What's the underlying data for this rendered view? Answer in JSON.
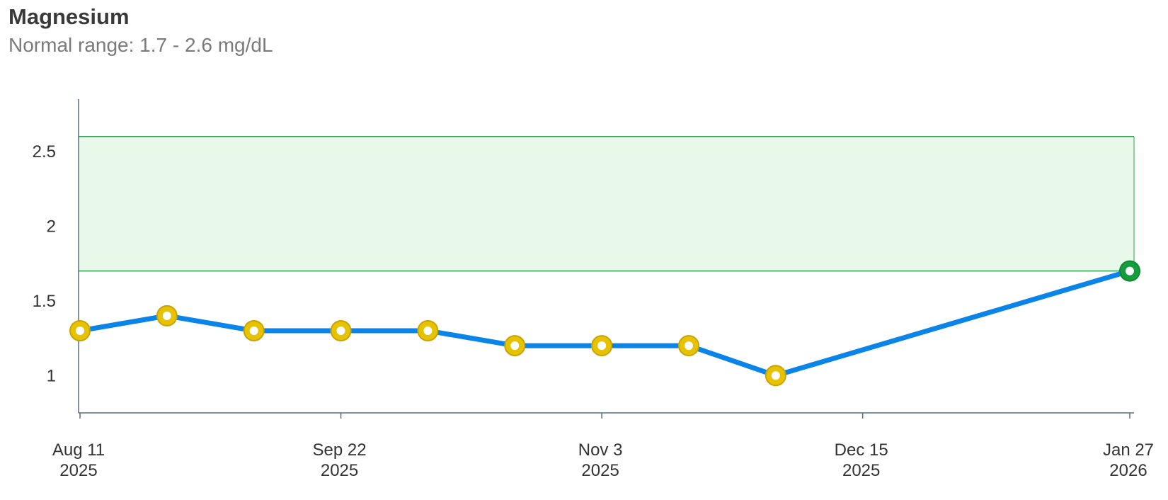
{
  "header": {
    "title": "Magnesium",
    "subtitle": "Normal range: 1.7 - 2.6 mg/dL"
  },
  "chart_data": {
    "type": "line",
    "title": "Magnesium",
    "subtitle": "Normal range: 1.7 - 2.6 mg/dL",
    "xlabel": "",
    "ylabel": "",
    "unit": "mg/dL",
    "normal_range": [
      1.7,
      2.6
    ],
    "ylim": [
      0.75,
      2.85
    ],
    "xlim": [
      "2025-08-11",
      "2026-01-27"
    ],
    "y_ticks": [
      1,
      1.5,
      2,
      2.5
    ],
    "x_ticks": [
      {
        "date": "2025-08-11",
        "line1": "Aug 11",
        "line2": "2025"
      },
      {
        "date": "2025-09-22",
        "line1": "Sep 22",
        "line2": "2025"
      },
      {
        "date": "2025-11-03",
        "line1": "Nov 3",
        "line2": "2025"
      },
      {
        "date": "2025-12-15",
        "line1": "Dec 15",
        "line2": "2025"
      },
      {
        "date": "2026-01-27",
        "line1": "Jan 27",
        "line2": "2026"
      }
    ],
    "series": [
      {
        "points": [
          {
            "x": "2025-08-11",
            "y": 1.3,
            "status": "low"
          },
          {
            "x": "2025-08-25",
            "y": 1.4,
            "status": "low"
          },
          {
            "x": "2025-09-08",
            "y": 1.3,
            "status": "low"
          },
          {
            "x": "2025-09-22",
            "y": 1.3,
            "status": "low"
          },
          {
            "x": "2025-10-06",
            "y": 1.3,
            "status": "low"
          },
          {
            "x": "2025-10-20",
            "y": 1.2,
            "status": "low"
          },
          {
            "x": "2025-11-03",
            "y": 1.2,
            "status": "low"
          },
          {
            "x": "2025-11-17",
            "y": 1.2,
            "status": "low"
          },
          {
            "x": "2025-12-01",
            "y": 1.0,
            "status": "low"
          },
          {
            "x": "2026-01-27",
            "y": 1.7,
            "status": "normal"
          }
        ]
      }
    ],
    "colors": {
      "line": "#0a84e8",
      "range_fill": "#e9f9e9",
      "range_stroke": "#2e9e4f",
      "axis": "#5a6e7a",
      "marker_low_fill": "#e6c200",
      "marker_low_stroke": "#c9a400",
      "marker_normal_fill": "#169c3f",
      "marker_normal_stroke": "#0f8a34"
    },
    "grid": false
  }
}
